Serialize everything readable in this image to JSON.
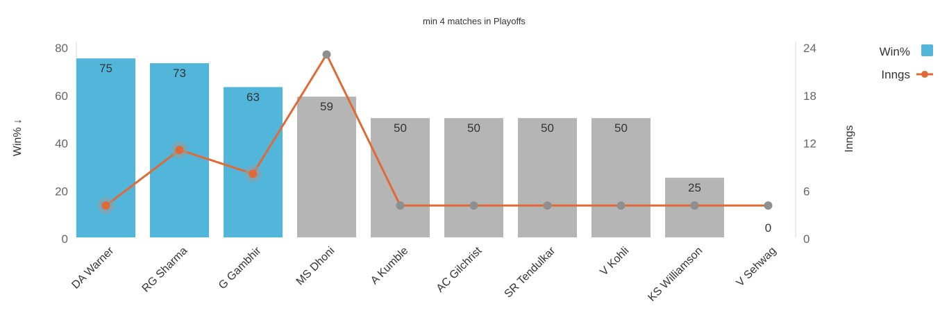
{
  "chart_data": {
    "type": "bar",
    "title": "min 4 matches in Playoffs",
    "categories": [
      "DA Warner",
      "RG Sharma",
      "G Gambhir",
      "MS Dhoni",
      "A Kumble",
      "AC Gilchrist",
      "SR Tendulkar",
      "V Kohli",
      "KS Williamson",
      "V Sehwag"
    ],
    "series": [
      {
        "name": "Win%",
        "type": "bar",
        "axis": "left",
        "values": [
          75,
          73,
          63,
          59,
          50,
          50,
          50,
          50,
          25,
          0
        ],
        "labels": [
          "75",
          "73",
          "63",
          "59",
          "50",
          "50",
          "50",
          "50",
          "25",
          "0"
        ],
        "highlighted": [
          true,
          true,
          true,
          false,
          false,
          false,
          false,
          false,
          false,
          false
        ]
      },
      {
        "name": "Inngs",
        "type": "line",
        "axis": "right",
        "values": [
          4,
          11,
          8,
          23,
          4,
          4,
          4,
          4,
          4,
          4
        ],
        "highlighted": [
          true,
          true,
          true,
          false,
          false,
          false,
          false,
          false,
          false,
          false
        ]
      }
    ],
    "y_left": {
      "label": "Win% ↓",
      "ticks": [
        "0",
        "20",
        "40",
        "60",
        "80"
      ],
      "range": [
        0,
        80
      ]
    },
    "y_right": {
      "label": "Inngs",
      "ticks": [
        "0",
        "6",
        "12",
        "18",
        "24"
      ],
      "range": [
        0,
        24
      ]
    },
    "legend": {
      "position": "top-right",
      "items": [
        "Win%",
        "Inngs"
      ]
    },
    "grid": false,
    "colors": {
      "bar_highlight": "#52b6db",
      "bar_default": "#b5b5b5",
      "line": "#e06a35",
      "marker_default": "#8f8f8f",
      "axis_line": "#c9e0e3"
    }
  }
}
